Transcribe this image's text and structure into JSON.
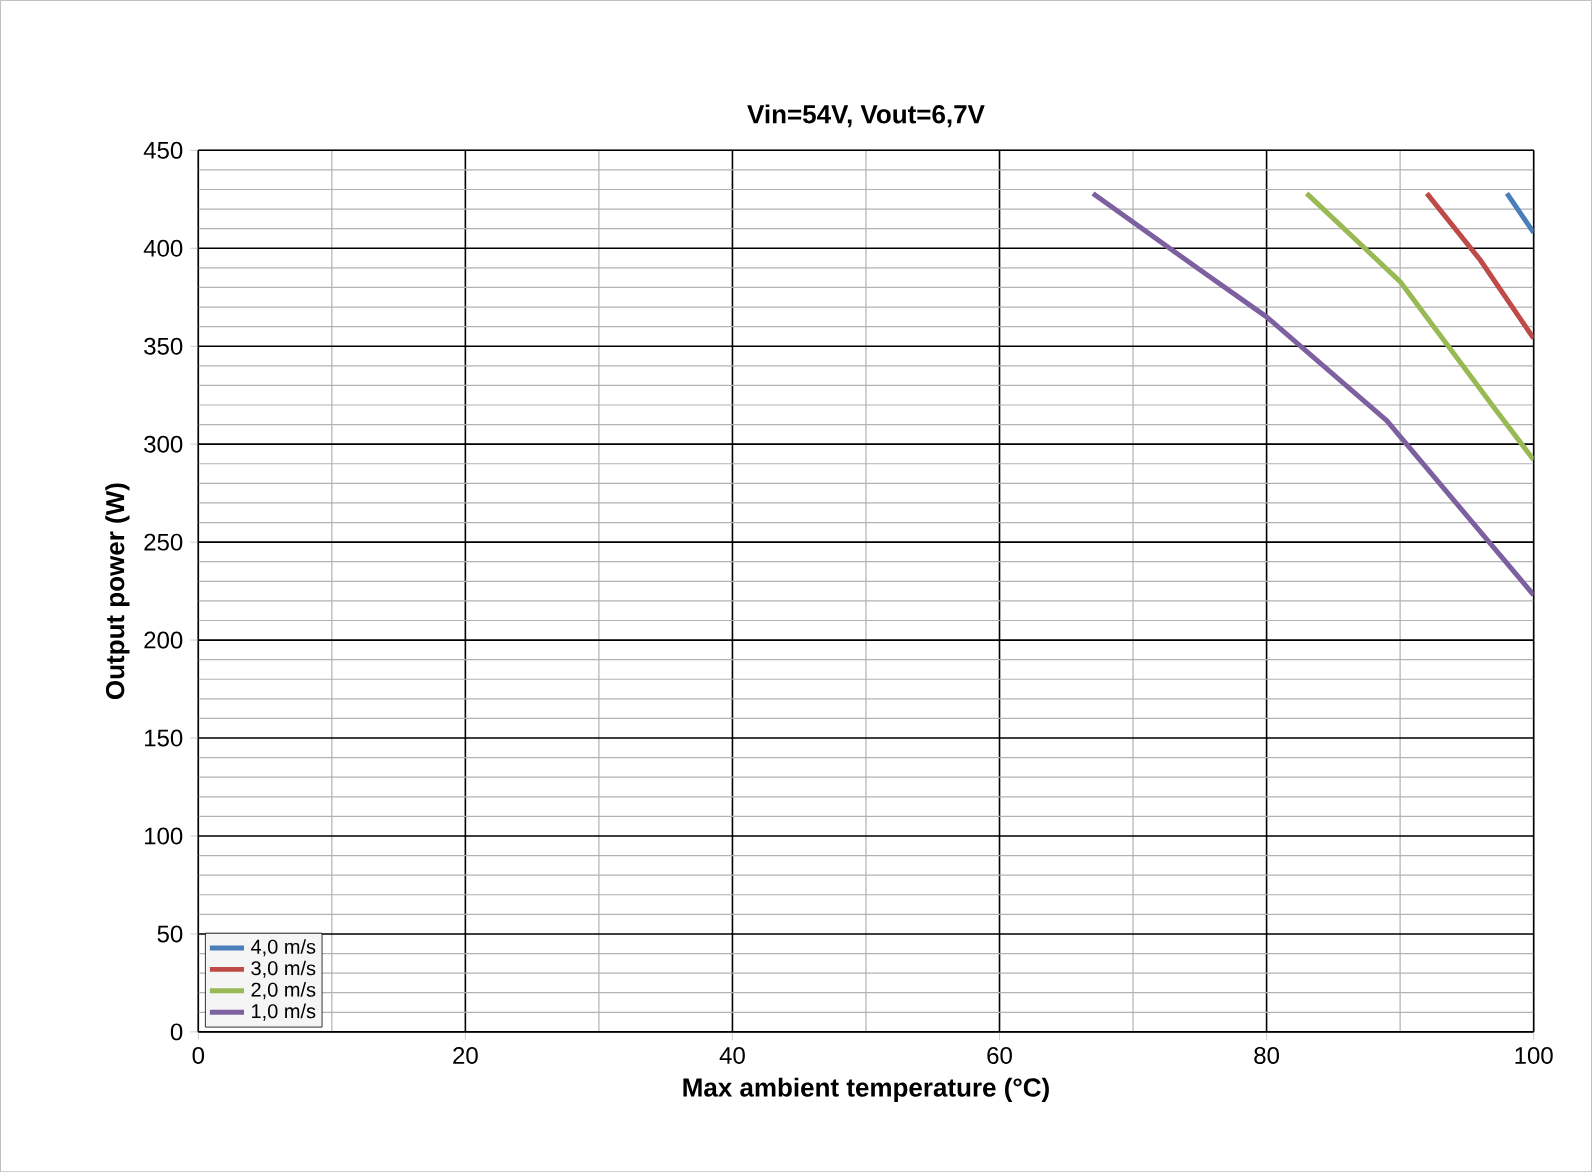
{
  "chart_data": {
    "type": "line",
    "title": "Vin=54V, Vout=6,7V",
    "xlabel": "Max ambient temperature (°C)",
    "ylabel": "Output power (W)",
    "xlim": [
      0,
      100
    ],
    "xticks": [
      0,
      20,
      40,
      60,
      80,
      100
    ],
    "ylim": [
      0,
      450
    ],
    "yticks": [
      0,
      50,
      100,
      150,
      200,
      250,
      300,
      350,
      400,
      450
    ],
    "grid": true,
    "legend": "bottom left",
    "series": [
      {
        "name": "4,0 m/s",
        "color": "#4a7ebb",
        "x": [
          98,
          100
        ],
        "values": [
          428,
          408
        ]
      },
      {
        "name": "3,0 m/s",
        "color": "#be4b48",
        "x": [
          92,
          96,
          100
        ],
        "values": [
          428,
          394,
          354
        ]
      },
      {
        "name": "2,0 m/s",
        "color": "#98b954",
        "x": [
          83,
          90,
          97,
          100
        ],
        "values": [
          428,
          383,
          319,
          292
        ]
      },
      {
        "name": "1,0 m/s",
        "color": "#7d60a0",
        "x": [
          67,
          75,
          80,
          89,
          100
        ],
        "values": [
          428,
          389,
          365,
          312,
          223
        ]
      }
    ]
  }
}
